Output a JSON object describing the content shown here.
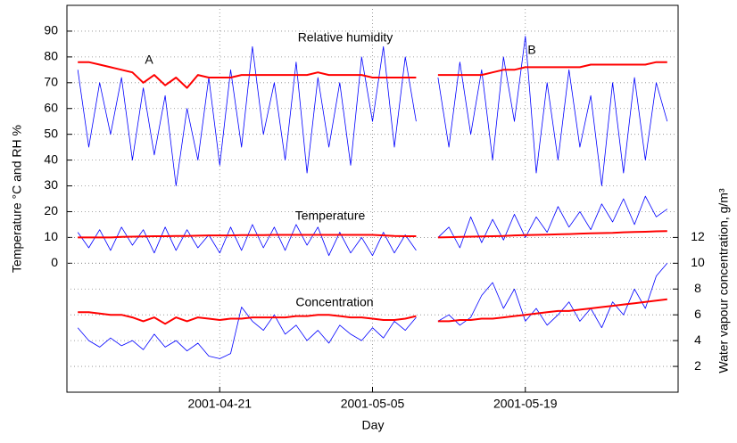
{
  "chart_data": {
    "type": "line",
    "xlabel": "Day",
    "ylabel": "Temperature °C and RH %",
    "y2label": "Water vapour concentration, g/m³",
    "annotations": [
      "Relative humidity",
      "Temperature",
      "Concentration",
      "A",
      "B"
    ],
    "x": [
      "2001-04-08",
      "2001-04-09",
      "2001-04-10",
      "2001-04-11",
      "2001-04-12",
      "2001-04-13",
      "2001-04-14",
      "2001-04-15",
      "2001-04-16",
      "2001-04-17",
      "2001-04-18",
      "2001-04-19",
      "2001-04-20",
      "2001-04-21",
      "2001-04-22",
      "2001-04-23",
      "2001-04-24",
      "2001-04-25",
      "2001-04-26",
      "2001-04-27",
      "2001-04-28",
      "2001-04-29",
      "2001-04-30",
      "2001-05-01",
      "2001-05-02",
      "2001-05-03",
      "2001-05-04",
      "2001-05-05",
      "2001-05-06",
      "2001-05-07",
      "2001-05-08",
      "2001-05-09",
      "2001-05-10",
      "2001-05-11",
      "2001-05-12",
      "2001-05-13",
      "2001-05-14",
      "2001-05-15",
      "2001-05-16",
      "2001-05-17",
      "2001-05-18",
      "2001-05-19",
      "2001-05-20",
      "2001-05-21",
      "2001-05-22",
      "2001-05-23",
      "2001-05-24",
      "2001-05-25",
      "2001-05-26",
      "2001-05-27",
      "2001-05-28",
      "2001-05-29",
      "2001-05-30",
      "2001-05-31",
      "2001-06-01"
    ],
    "xlim": [
      "2001-04-07",
      "2001-06-02"
    ],
    "xticks": [
      "2001-04-21",
      "2001-05-05",
      "2001-05-19"
    ],
    "ylim": [
      -50,
      100
    ],
    "yticks": [
      0,
      10,
      20,
      30,
      40,
      50,
      60,
      70,
      80,
      90
    ],
    "y2lim": [
      0,
      30
    ],
    "y2ticks": [
      2,
      4,
      6,
      8,
      10,
      12
    ],
    "grid": true,
    "series": [
      {
        "color": "#0000ff",
        "width": 0.8,
        "values": [
          75,
          45,
          70,
          50,
          72,
          40,
          68,
          42,
          65,
          30,
          60,
          40,
          72,
          38,
          75,
          45,
          84,
          50,
          70,
          40,
          78,
          35,
          72,
          45,
          70,
          38,
          80,
          55,
          84,
          45,
          80,
          55,
          null,
          72,
          45,
          78,
          50,
          75,
          40,
          80,
          55,
          88,
          35,
          70,
          40,
          75,
          45,
          65,
          30,
          70,
          35,
          72,
          40,
          70,
          55
        ]
      },
      {
        "color": "#ff0000",
        "width": 2,
        "values": [
          78,
          78,
          77,
          76,
          75,
          74,
          70,
          73,
          69,
          72,
          68,
          73,
          72,
          72,
          72,
          73,
          73,
          73,
          73,
          73,
          73,
          73,
          74,
          73,
          73,
          73,
          73,
          72,
          72,
          72,
          72,
          72,
          null,
          73,
          73,
          73,
          73,
          73,
          74,
          75,
          75,
          76,
          76,
          76,
          76,
          76,
          76,
          77,
          77,
          77,
          77,
          77,
          77,
          78,
          78
        ]
      },
      {
        "color": "#0000ff",
        "width": 0.8,
        "values": [
          12,
          6,
          13,
          5,
          14,
          7,
          13,
          4,
          14,
          5,
          13,
          6,
          11,
          4,
          14,
          5,
          15,
          6,
          14,
          5,
          15,
          7,
          14,
          3,
          12,
          4,
          10,
          3,
          12,
          4,
          11,
          5,
          null,
          10,
          14,
          6,
          18,
          8,
          17,
          9,
          19,
          10,
          18,
          12,
          22,
          14,
          20,
          13,
          23,
          16,
          25,
          15,
          26,
          18,
          21
        ]
      },
      {
        "color": "#ff0000",
        "width": 2,
        "values": [
          10,
          10,
          10,
          10,
          10.2,
          10.3,
          10.4,
          10.5,
          10.5,
          10.6,
          10.6,
          10.7,
          10.8,
          10.8,
          10.8,
          10.9,
          10.9,
          10.9,
          11,
          11,
          11,
          11,
          11,
          11,
          11,
          11,
          11,
          11,
          10.8,
          10.6,
          10.5,
          10.5,
          null,
          10,
          10.1,
          10.2,
          10.3,
          10.4,
          10.5,
          10.6,
          10.8,
          10.9,
          11,
          11.1,
          11.2,
          11.3,
          11.5,
          11.6,
          11.7,
          11.8,
          12,
          12.1,
          12.2,
          12.4,
          12.5
        ]
      },
      {
        "color": "#0000ff",
        "width": 0.8,
        "axis": "y2",
        "values": [
          5.0,
          4.0,
          3.5,
          4.2,
          3.6,
          4.0,
          3.3,
          4.5,
          3.5,
          4.0,
          3.2,
          3.8,
          2.8,
          2.6,
          3.0,
          6.6,
          5.5,
          4.8,
          6.0,
          4.5,
          5.2,
          4.0,
          4.8,
          3.8,
          5.2,
          4.5,
          4.0,
          5.0,
          4.2,
          5.5,
          4.8,
          5.8,
          null,
          5.5,
          6.0,
          5.2,
          5.8,
          7.5,
          8.5,
          6.5,
          8.0,
          5.5,
          6.5,
          5.2,
          6.0,
          7.0,
          5.5,
          6.5,
          5.0,
          7.0,
          6.0,
          8.0,
          6.5,
          9.0,
          10.0
        ]
      },
      {
        "color": "#ff0000",
        "width": 2,
        "axis": "y2",
        "values": [
          6.2,
          6.2,
          6.1,
          6.0,
          6.0,
          5.8,
          5.5,
          5.8,
          5.3,
          5.8,
          5.5,
          5.8,
          5.7,
          5.6,
          5.7,
          5.7,
          5.8,
          5.8,
          5.8,
          5.8,
          5.9,
          5.9,
          6.0,
          6.0,
          5.9,
          5.8,
          5.8,
          5.7,
          5.6,
          5.6,
          5.7,
          5.9,
          null,
          5.5,
          5.5,
          5.6,
          5.6,
          5.7,
          5.7,
          5.8,
          5.9,
          6.0,
          6.1,
          6.2,
          6.3,
          6.3,
          6.4,
          6.5,
          6.6,
          6.7,
          6.8,
          6.9,
          7.0,
          7.1,
          7.2
        ]
      }
    ]
  }
}
